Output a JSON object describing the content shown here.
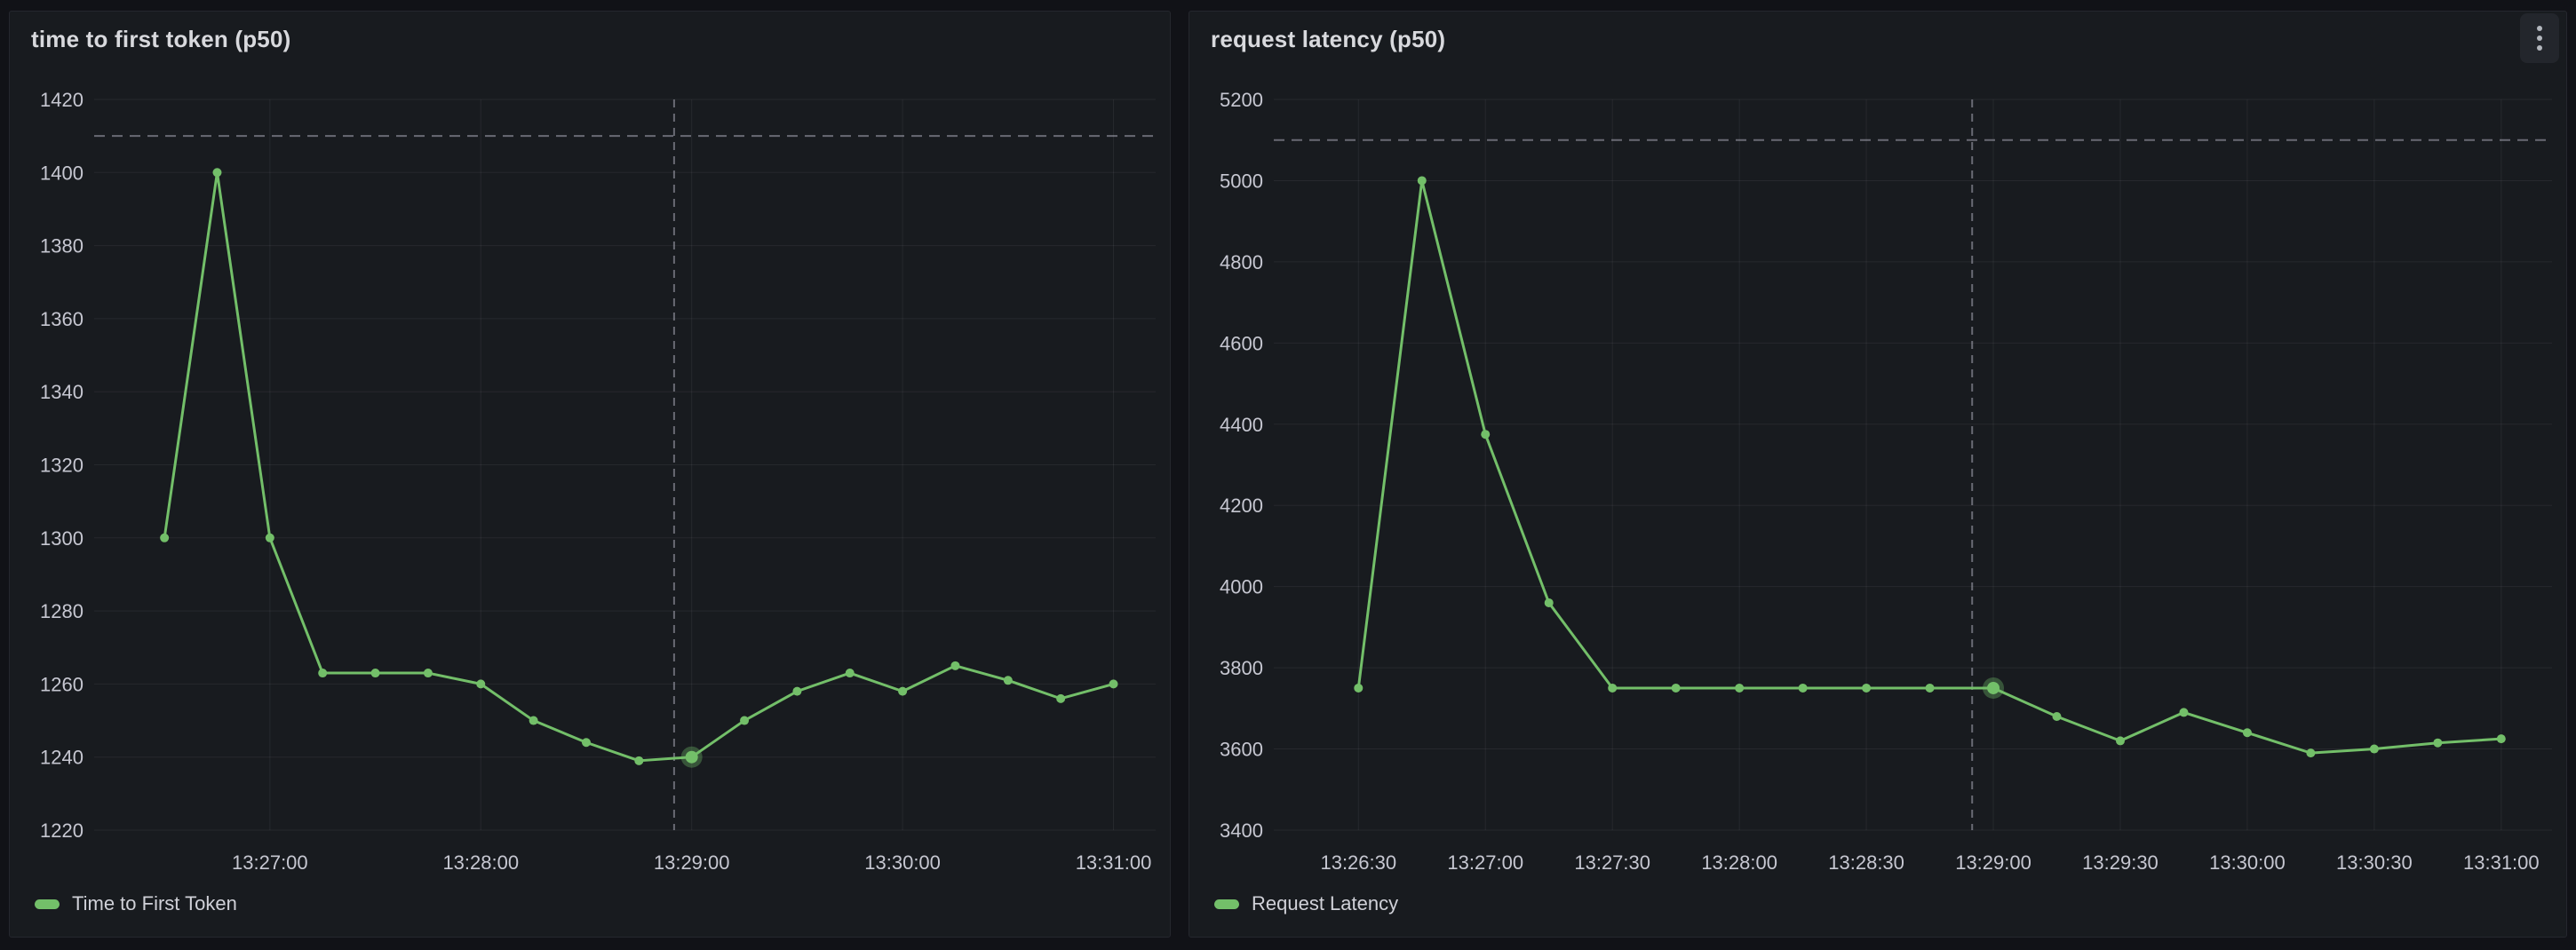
{
  "page": {
    "background_color": "#111217",
    "panel_background_color": "#181b1f"
  },
  "panels": [
    {
      "title": "time to first token (p50)",
      "menu_visible": false
    },
    {
      "title": "request latency (p50)",
      "menu_visible": true,
      "menu_icon": "kebab-vertical"
    }
  ],
  "chart_data": [
    {
      "type": "line",
      "title": "time to first token (p50)",
      "legend": "Time to First Token",
      "legend_position": "bottom-left",
      "series_color": "#73bf69",
      "grid": true,
      "x_domain": [
        "13:26:10",
        "13:31:12"
      ],
      "y_domain": [
        1220,
        1420
      ],
      "x_ticks": [
        "13:27:00",
        "13:28:00",
        "13:29:00",
        "13:30:00",
        "13:31:00"
      ],
      "y_ticks": [
        1420,
        1400,
        1380,
        1360,
        1340,
        1320,
        1300,
        1280,
        1260,
        1240,
        1220
      ],
      "threshold_value": 1410,
      "cursor_time": "13:28:55",
      "highlight_time": "13:29:00",
      "x": [
        "13:26:30",
        "13:26:45",
        "13:27:00",
        "13:27:15",
        "13:27:30",
        "13:27:45",
        "13:28:00",
        "13:28:15",
        "13:28:30",
        "13:28:45",
        "13:29:00",
        "13:29:15",
        "13:29:30",
        "13:29:45",
        "13:30:00",
        "13:30:15",
        "13:30:30",
        "13:30:45",
        "13:31:00"
      ],
      "values": [
        1300,
        1400,
        1300,
        1263,
        1263,
        1263,
        1260,
        1250,
        1244,
        1239,
        1240,
        1250,
        1258,
        1263,
        1258,
        1265,
        1261,
        1256,
        1260
      ]
    },
    {
      "type": "line",
      "title": "request latency (p50)",
      "legend": "Request Latency",
      "legend_position": "bottom-left",
      "series_color": "#73bf69",
      "grid": true,
      "x_domain": [
        "13:26:10",
        "13:31:12"
      ],
      "y_domain": [
        3400,
        5200
      ],
      "x_ticks": [
        "13:26:30",
        "13:27:00",
        "13:27:30",
        "13:28:00",
        "13:28:30",
        "13:29:00",
        "13:29:30",
        "13:30:00",
        "13:30:30",
        "13:31:00"
      ],
      "y_ticks": [
        5200,
        5000,
        4800,
        4600,
        4400,
        4200,
        4000,
        3800,
        3600,
        3400
      ],
      "threshold_value": 5100,
      "cursor_time": "13:28:55",
      "highlight_time": "13:29:00",
      "x": [
        "13:26:30",
        "13:26:45",
        "13:27:00",
        "13:27:15",
        "13:27:30",
        "13:27:45",
        "13:28:00",
        "13:28:15",
        "13:28:30",
        "13:28:45",
        "13:29:00",
        "13:29:15",
        "13:29:30",
        "13:29:45",
        "13:30:00",
        "13:30:15",
        "13:30:30",
        "13:30:45",
        "13:31:00"
      ],
      "values": [
        3750,
        5000,
        4375,
        3960,
        3750,
        3750,
        3750,
        3750,
        3750,
        3750,
        3750,
        3680,
        3620,
        3690,
        3640,
        3590,
        3600,
        3615,
        3625
      ]
    }
  ]
}
